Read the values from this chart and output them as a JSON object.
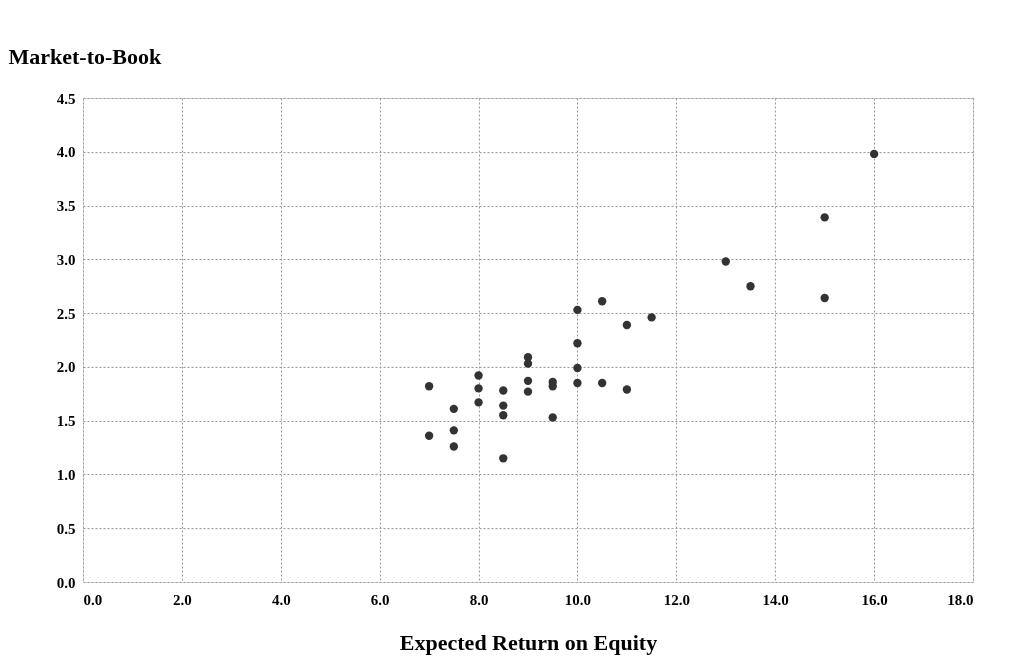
{
  "chart_data": {
    "type": "scatter",
    "xlabel": "Expected Return on Equity",
    "ylabel": "Market-to-Book",
    "x": [
      7.0,
      7.0,
      7.5,
      7.5,
      7.5,
      8.0,
      8.0,
      8.0,
      8.5,
      8.5,
      8.5,
      8.5,
      9.0,
      9.0,
      9.0,
      9.0,
      9.5,
      9.5,
      9.5,
      10.0,
      10.0,
      10.0,
      10.0,
      10.5,
      10.5,
      11.0,
      11.0,
      11.5,
      13.0,
      13.5,
      15.0,
      15.0,
      16.0
    ],
    "series": [
      {
        "color": "#333333",
        "values": [
          1.82,
          1.36,
          1.61,
          1.41,
          1.26,
          1.92,
          1.8,
          1.67,
          1.78,
          1.64,
          1.55,
          1.15,
          2.09,
          2.03,
          1.87,
          1.77,
          1.86,
          1.82,
          1.53,
          2.53,
          2.22,
          1.99,
          1.85,
          2.61,
          1.85,
          2.39,
          1.79,
          2.46,
          2.98,
          2.75,
          3.39,
          2.64,
          3.98
        ]
      }
    ],
    "xlim": [
      0,
      18
    ],
    "ylim": [
      0,
      4.5
    ],
    "xticks": [
      {
        "value": 0,
        "label": "0.0"
      },
      {
        "value": 2,
        "label": "2.0"
      },
      {
        "value": 4,
        "label": "4.0"
      },
      {
        "value": 6,
        "label": "6.0"
      },
      {
        "value": 8,
        "label": "8.0"
      },
      {
        "value": 10,
        "label": "10.0"
      },
      {
        "value": 12,
        "label": "12.0"
      },
      {
        "value": 14,
        "label": "14.0"
      },
      {
        "value": 16,
        "label": "16.0"
      },
      {
        "value": 18,
        "label": "18.0"
      }
    ],
    "yticks": [
      {
        "value": 0,
        "label": "0.0"
      },
      {
        "value": 0.5,
        "label": "0.5"
      },
      {
        "value": 1,
        "label": "1.0"
      },
      {
        "value": 1.5,
        "label": "1.5"
      },
      {
        "value": 2,
        "label": "2.0"
      },
      {
        "value": 2.5,
        "label": "2.5"
      },
      {
        "value": 3,
        "label": "3.0"
      },
      {
        "value": 3.5,
        "label": "3.5"
      },
      {
        "value": 4,
        "label": "4.0"
      },
      {
        "value": 4.5,
        "label": "4.5"
      }
    ],
    "grid": true,
    "marker": "circle"
  }
}
